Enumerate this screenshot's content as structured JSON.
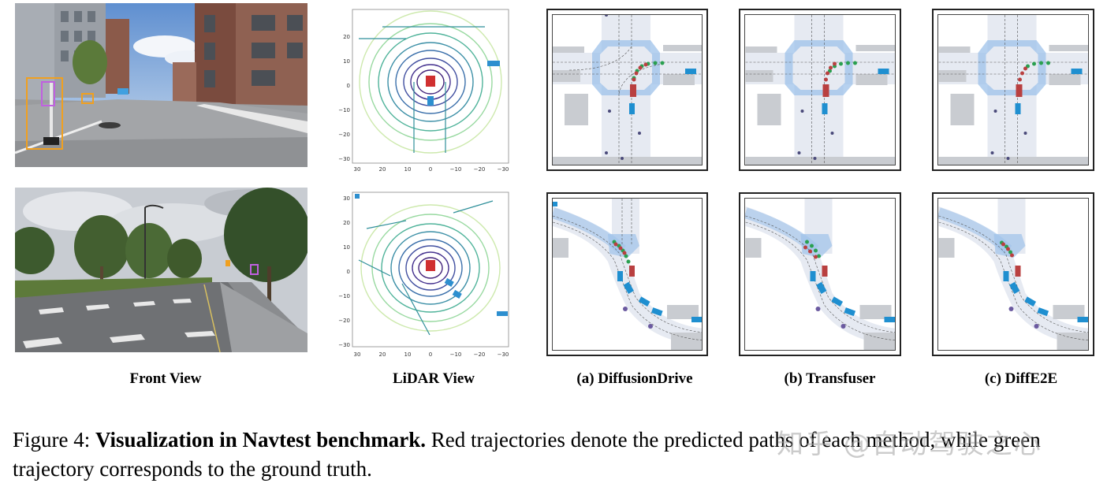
{
  "column_labels": {
    "front": "Front View",
    "lidar": "LiDAR View",
    "a": "(a) DiffusionDrive",
    "b": "(b) Transfuser",
    "c": "(c) DiffE2E"
  },
  "lidar_axes": {
    "y_ticks": [
      "30",
      "20",
      "10",
      "0",
      "−10",
      "−20",
      "−30"
    ],
    "x_ticks": [
      "30",
      "20",
      "10",
      "0",
      "−10",
      "−20",
      "−30"
    ],
    "y_ticks_row1": [
      "20",
      "10",
      "0",
      "−10",
      "−20",
      "−30"
    ]
  },
  "caption": {
    "figure_number": "Figure 4:",
    "title": "Visualization in Navtest benchmark.",
    "body": " Red trajectories denote the predicted paths of each method, while green trajectory corresponds to the ground truth."
  },
  "watermark": "知乎 @自动驾驶之心",
  "colors": {
    "prediction": "#b94040",
    "ground_truth": "#2aa050",
    "vehicle": "#1f8fd0",
    "road": "#e8ecf3",
    "crosswalk": "#8fb8e8"
  }
}
